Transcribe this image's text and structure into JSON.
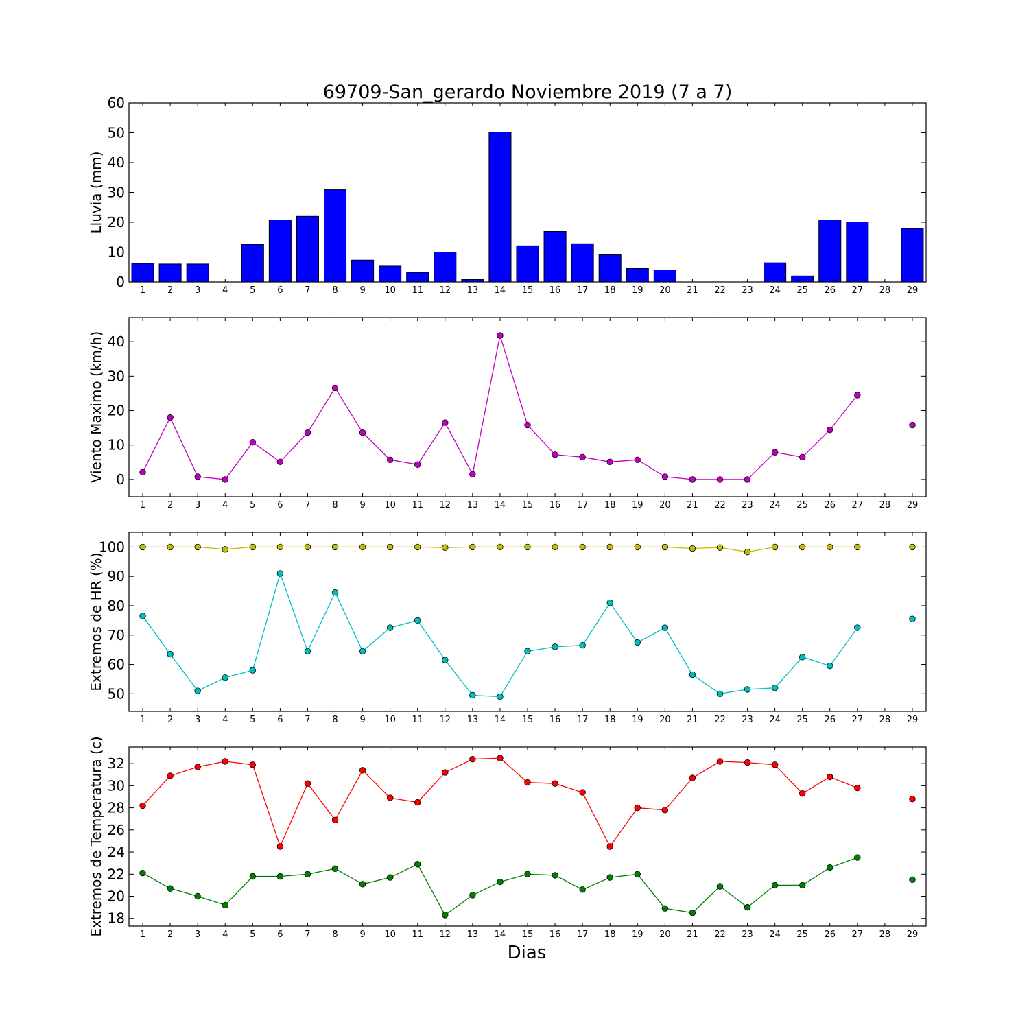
{
  "title": "69709-San_gerardo Noviembre 2019  (7 a 7)",
  "xlabel": "Dias",
  "chart_data": [
    {
      "type": "bar",
      "ylabel": "Lluvia (mm)",
      "x": [
        1,
        2,
        3,
        4,
        5,
        6,
        7,
        8,
        9,
        10,
        11,
        12,
        13,
        14,
        15,
        16,
        17,
        18,
        19,
        20,
        21,
        22,
        23,
        24,
        25,
        26,
        27,
        28,
        29
      ],
      "xlim": [
        0.5,
        29.5
      ],
      "ylim": [
        0,
        60
      ],
      "yticks": [
        0,
        10,
        20,
        30,
        40,
        50,
        60
      ],
      "series": [
        {
          "color": "#0000ff",
          "values": [
            6.2,
            6.0,
            6.0,
            0,
            12.6,
            20.8,
            22.0,
            30.9,
            7.3,
            5.3,
            3.2,
            10.0,
            0.8,
            50.2,
            12.1,
            16.9,
            12.8,
            9.3,
            4.5,
            4.0,
            0,
            0,
            0,
            6.4,
            2.0,
            20.8,
            20.1,
            null,
            17.9
          ]
        }
      ]
    },
    {
      "type": "line",
      "ylabel": "Viento Maximo (km/h)",
      "x": [
        1,
        2,
        3,
        4,
        5,
        6,
        7,
        8,
        9,
        10,
        11,
        12,
        13,
        14,
        15,
        16,
        17,
        18,
        19,
        20,
        21,
        22,
        23,
        24,
        25,
        26,
        27,
        28,
        29
      ],
      "xlim": [
        0.5,
        29.5
      ],
      "ylim": [
        -5,
        47
      ],
      "yticks": [
        0,
        10,
        20,
        30,
        40
      ],
      "series": [
        {
          "color": "#bf00bf",
          "values": [
            2.1,
            18.0,
            0.8,
            0.0,
            10.8,
            5.1,
            13.6,
            26.6,
            13.6,
            5.7,
            4.3,
            16.5,
            1.5,
            41.8,
            15.8,
            7.2,
            6.5,
            5.1,
            5.7,
            0.8,
            0.0,
            0.0,
            0.0,
            7.9,
            6.5,
            14.4,
            24.5,
            null,
            15.8
          ]
        }
      ]
    },
    {
      "type": "line",
      "ylabel": "Extremos de HR (%)",
      "x": [
        1,
        2,
        3,
        4,
        5,
        6,
        7,
        8,
        9,
        10,
        11,
        12,
        13,
        14,
        15,
        16,
        17,
        18,
        19,
        20,
        21,
        22,
        23,
        24,
        25,
        26,
        27,
        28,
        29
      ],
      "xlim": [
        0.5,
        29.5
      ],
      "ylim": [
        44,
        105
      ],
      "yticks": [
        50,
        60,
        70,
        80,
        90,
        100
      ],
      "series": [
        {
          "color": "#bfbf00",
          "values": [
            100,
            100,
            100,
            99.2,
            100,
            100,
            100,
            100,
            100,
            100,
            100,
            99.8,
            100,
            100,
            100,
            100,
            100,
            100,
            100,
            100,
            99.5,
            99.8,
            98.3,
            100,
            100,
            100,
            100,
            null,
            100
          ]
        },
        {
          "color": "#00bfbf",
          "values": [
            76.5,
            63.5,
            51.0,
            55.5,
            58.0,
            91.0,
            64.5,
            84.5,
            64.5,
            72.5,
            75.0,
            61.5,
            49.5,
            49.0,
            64.5,
            66.0,
            66.5,
            81.0,
            67.5,
            72.5,
            56.5,
            50.0,
            51.5,
            52.0,
            62.5,
            59.5,
            72.5,
            null,
            75.5
          ]
        }
      ]
    },
    {
      "type": "line",
      "ylabel": "Extremos de Temperatura (c)",
      "x": [
        1,
        2,
        3,
        4,
        5,
        6,
        7,
        8,
        9,
        10,
        11,
        12,
        13,
        14,
        15,
        16,
        17,
        18,
        19,
        20,
        21,
        22,
        23,
        24,
        25,
        26,
        27,
        28,
        29
      ],
      "xlim": [
        0.5,
        29.5
      ],
      "ylim": [
        17.3,
        33.5
      ],
      "yticks": [
        18,
        20,
        22,
        24,
        26,
        28,
        30,
        32
      ],
      "series": [
        {
          "color": "#ff0000",
          "values": [
            28.2,
            30.9,
            31.7,
            32.2,
            31.9,
            24.5,
            30.2,
            26.9,
            31.4,
            28.9,
            28.5,
            31.2,
            32.4,
            32.5,
            30.3,
            30.2,
            29.4,
            24.5,
            28.0,
            27.8,
            30.7,
            32.2,
            32.1,
            31.9,
            29.3,
            30.8,
            29.8,
            null,
            28.8
          ]
        },
        {
          "color": "#008000",
          "values": [
            22.1,
            20.7,
            20.0,
            19.2,
            21.8,
            21.8,
            22.0,
            22.5,
            21.1,
            21.7,
            22.9,
            18.3,
            20.1,
            21.3,
            22.0,
            21.9,
            20.6,
            21.7,
            22.0,
            18.9,
            18.5,
            20.9,
            19.0,
            21.0,
            21.0,
            22.6,
            23.5,
            null,
            21.5
          ]
        }
      ]
    }
  ]
}
